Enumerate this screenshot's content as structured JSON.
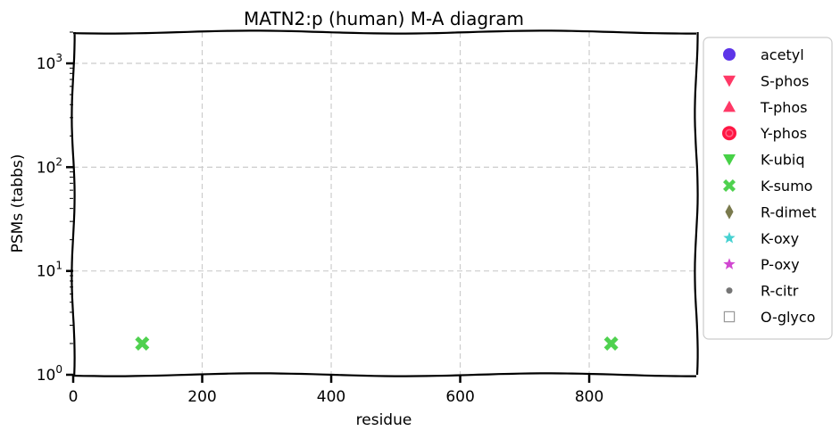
{
  "chart_data": {
    "type": "scatter",
    "title": "MATN2:p (human) M-A diagram",
    "xlabel": "residue",
    "ylabel": "PSMs (tabbs)",
    "xlim": [
      0,
      966
    ],
    "ylim": [
      1,
      2000
    ],
    "yscale": "log",
    "grid": true,
    "legend_position": "right",
    "x_ticks": [
      "0",
      "200",
      "400",
      "600",
      "800"
    ],
    "x_tick_values": [
      0,
      200,
      400,
      600,
      800
    ],
    "y_ticks": [
      {
        "base": "10",
        "exp": "0",
        "value": 1
      },
      {
        "base": "10",
        "exp": "1",
        "value": 10
      },
      {
        "base": "10",
        "exp": "2",
        "value": 100
      },
      {
        "base": "10",
        "exp": "3",
        "value": 1000
      }
    ],
    "series": [
      {
        "name": "acetyl",
        "marker": "circle",
        "color": "#4b1fe6",
        "points": []
      },
      {
        "name": "S-phos",
        "marker": "triangle-down",
        "color": "#ff2255",
        "points": []
      },
      {
        "name": "T-phos",
        "marker": "triangle-up",
        "color": "#ff2255",
        "points": []
      },
      {
        "name": "Y-phos",
        "marker": "circle-ring",
        "color": "#ff1744",
        "points": []
      },
      {
        "name": "K-ubiq",
        "marker": "triangle-down",
        "color": "#33cc33",
        "points": []
      },
      {
        "name": "K-sumo",
        "marker": "x-filled",
        "color": "#3ccc3c",
        "points": [
          {
            "x": 107,
            "y": 2
          },
          {
            "x": 834,
            "y": 2
          }
        ]
      },
      {
        "name": "R-dimet",
        "marker": "diamond",
        "color": "#6b6b3a",
        "points": []
      },
      {
        "name": "K-oxy",
        "marker": "star",
        "color": "#33cccc",
        "points": []
      },
      {
        "name": "P-oxy",
        "marker": "star",
        "color": "#cc33cc",
        "points": []
      },
      {
        "name": "R-citr",
        "marker": "dot",
        "color": "#666666",
        "points": []
      },
      {
        "name": "O-glyco",
        "marker": "square-open",
        "color": "#999999",
        "points": []
      }
    ]
  }
}
